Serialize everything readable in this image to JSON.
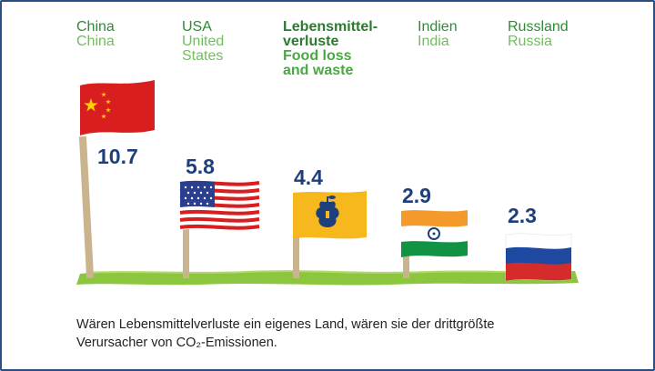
{
  "chart_data": {
    "type": "bar",
    "categories": [
      {
        "de": "China",
        "en": "China"
      },
      {
        "de": "USA",
        "en": "United States"
      },
      {
        "de": "Lebensmittel-verluste",
        "en": "Food loss and waste"
      },
      {
        "de": "Indien",
        "en": "India"
      },
      {
        "de": "Russland",
        "en": "Russia"
      }
    ],
    "values": [
      10.7,
      5.8,
      4.4,
      2.9,
      2.3
    ],
    "value_labels": [
      "10.7",
      "5.8",
      "4.4",
      "2.9",
      "2.3"
    ],
    "marks": [
      "china-flag",
      "usa-flag",
      "food-waste-flag",
      "india-flag",
      "russia-flag"
    ]
  },
  "header": {
    "china_de": "China",
    "china_en": "China",
    "usa_de": "USA",
    "usa_en_1": "United",
    "usa_en_2": "States",
    "food_de_1": "Lebensmittel-",
    "food_de_2": "verluste",
    "food_en_1": "Food loss",
    "food_en_2": "and waste",
    "india_de": "Indien",
    "india_en": "India",
    "russia_de": "Russland",
    "russia_en": "Russia"
  },
  "caption": {
    "line1": "Wären Lebensmittelverluste ein eigenes Land, wären sie der drittgrößte",
    "line2": "Verursacher von CO₂-Emissionen."
  },
  "colors": {
    "label_green": "#2e8b35",
    "label_light_green": "#6fbf5a",
    "value_blue": "#1d3f7c",
    "grass": "#8cc63f",
    "pole": "#c9b48e",
    "china_red": "#d81e1e",
    "china_star": "#ffd200",
    "food_orange": "#f6b81c",
    "india_saffron": "#f39a2b",
    "india_green": "#129245",
    "russia_blue": "#1d4aa0",
    "russia_red": "#d52b2b"
  }
}
